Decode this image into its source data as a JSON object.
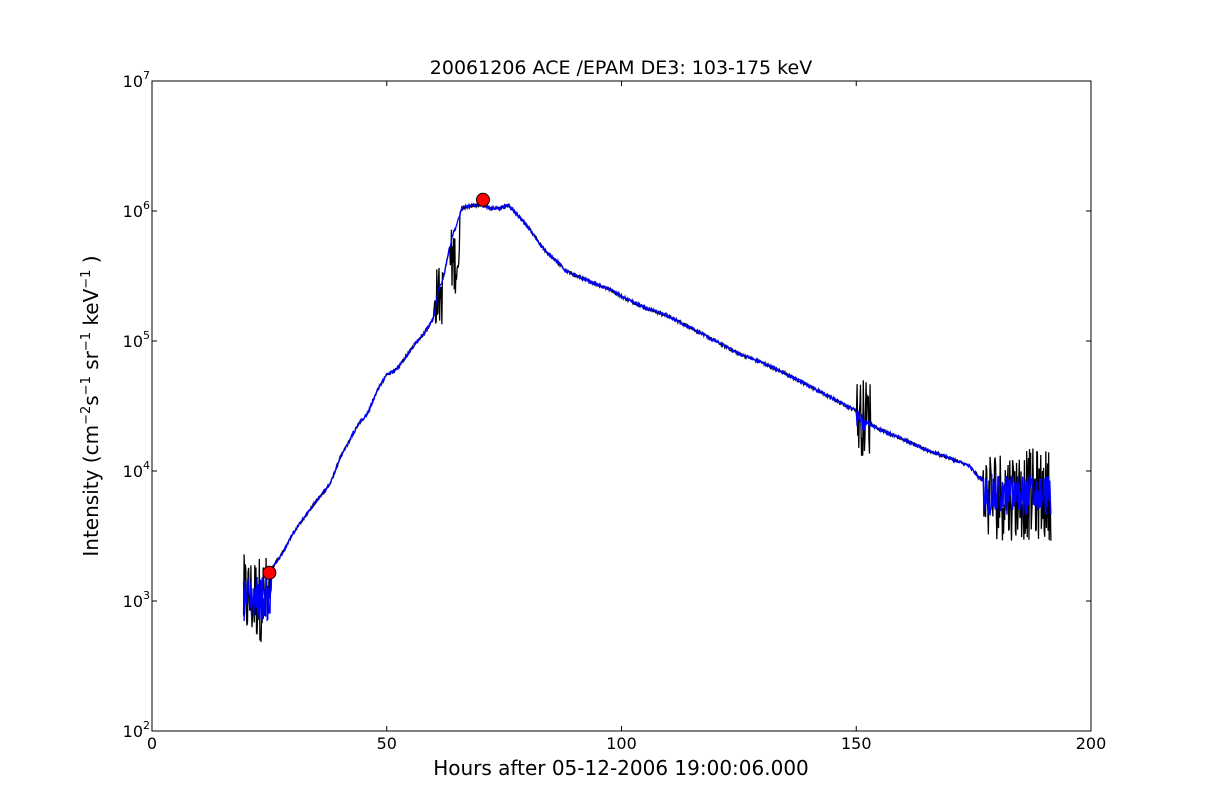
{
  "chart_data": {
    "type": "line",
    "title": "20061206 ACE /EPAM DE3: 103-175 keV",
    "xlabel": "Hours after 05-12-2006 19:00:06.000",
    "ylabel_parts": {
      "prefix": "Intensity (cm",
      "cm_exp": "−2",
      "s": "s",
      "s_exp": "−1",
      "sr": "sr",
      "sr_exp": "−1",
      "kev": "keV",
      "kev_exp": "−1",
      "suffix": ")"
    },
    "xlim": [
      0,
      200
    ],
    "ylim": [
      100,
      10000000
    ],
    "yscale": "log",
    "grid": false,
    "x_ticks": [
      {
        "value": 0,
        "label": "0"
      },
      {
        "value": 50,
        "label": "50"
      },
      {
        "value": 100,
        "label": "100"
      },
      {
        "value": 150,
        "label": "150"
      },
      {
        "value": 200,
        "label": "200"
      }
    ],
    "y_ticks": [
      {
        "value": 100,
        "base": "10",
        "exp": "2"
      },
      {
        "value": 1000,
        "base": "10",
        "exp": "3"
      },
      {
        "value": 10000,
        "base": "10",
        "exp": "4"
      },
      {
        "value": 100000,
        "base": "10",
        "exp": "5"
      },
      {
        "value": 1000000,
        "base": "10",
        "exp": "6"
      },
      {
        "value": 10000000,
        "base": "10",
        "exp": "7"
      }
    ],
    "series": [
      {
        "color": "#000000",
        "x": [
          19.5,
          20.5,
          22,
          24,
          25,
          26,
          28,
          30,
          33,
          36,
          38,
          40,
          42,
          44,
          46,
          48,
          50,
          52,
          54,
          56,
          58,
          60,
          61,
          62,
          63,
          64,
          65,
          66,
          68,
          70,
          72,
          74,
          76,
          78,
          80,
          82,
          84,
          86,
          88,
          90,
          92,
          95,
          98,
          100,
          105,
          110,
          115,
          120,
          125,
          130,
          135,
          140,
          145,
          150,
          151,
          152,
          155,
          160,
          165,
          170,
          174,
          176,
          178,
          180,
          182,
          184,
          186,
          188,
          190,
          191.5
        ],
        "y": [
          1000,
          1100,
          1050,
          1200,
          1600,
          1900,
          2400,
          3300,
          4700,
          6500,
          8000,
          12500,
          17000,
          23000,
          28000,
          42000,
          55000,
          60000,
          75000,
          95000,
          115000,
          150000,
          250000,
          300000,
          450000,
          650000,
          800000,
          1050000,
          1100000,
          1120000,
          1050000,
          1050000,
          1100000,
          920000,
          760000,
          600000,
          480000,
          420000,
          350000,
          320000,
          300000,
          270000,
          245000,
          220000,
          180000,
          155000,
          125000,
          100000,
          80000,
          68000,
          56000,
          45000,
          36000,
          29000,
          24000,
          24000,
          21000,
          17500,
          14500,
          12500,
          11000,
          9000,
          8000,
          7800,
          7200,
          7000,
          6600,
          6200,
          5800,
          5500
        ],
        "noise": [
          {
            "from": 19.5,
            "to": 25.5,
            "ymin": 480,
            "ymax": 2300
          },
          {
            "from": 60,
            "to": 62,
            "ymin": 130000,
            "ymax": 380000
          },
          {
            "from": 63.5,
            "to": 65.5,
            "ymin": 230000,
            "ymax": 750000
          },
          {
            "from": 150,
            "to": 153,
            "ymin": 13000,
            "ymax": 52000
          },
          {
            "from": 177,
            "to": 192,
            "ymin": 2900,
            "ymax": 15000
          }
        ]
      },
      {
        "color": "#0000ff",
        "x": [
          19.5,
          20.5,
          22,
          24,
          25,
          26,
          28,
          30,
          33,
          36,
          38,
          40,
          42,
          44,
          46,
          48,
          50,
          52,
          54,
          56,
          58,
          60,
          61,
          62,
          63,
          64,
          65,
          66,
          68,
          70,
          72,
          74,
          76,
          78,
          80,
          82,
          84,
          86,
          88,
          90,
          92,
          95,
          98,
          100,
          105,
          110,
          115,
          120,
          125,
          130,
          135,
          140,
          145,
          150,
          151,
          152,
          155,
          160,
          165,
          170,
          174,
          176,
          178,
          180,
          182,
          184,
          186,
          188,
          190,
          191.5
        ],
        "y": [
          1000,
          1100,
          1050,
          1200,
          1600,
          1900,
          2400,
          3300,
          4700,
          6500,
          8000,
          12500,
          17000,
          23000,
          28000,
          42000,
          55000,
          60000,
          75000,
          95000,
          115000,
          150000,
          250000,
          300000,
          450000,
          650000,
          800000,
          1050000,
          1100000,
          1120000,
          1050000,
          1050000,
          1100000,
          920000,
          760000,
          600000,
          480000,
          420000,
          350000,
          320000,
          300000,
          270000,
          245000,
          220000,
          180000,
          155000,
          125000,
          100000,
          80000,
          68000,
          56000,
          45000,
          36000,
          29000,
          24000,
          24000,
          21000,
          17500,
          14500,
          12500,
          11000,
          9000,
          8000,
          7800,
          7200,
          7000,
          6600,
          6200,
          5800,
          5500
        ],
        "noise": [
          {
            "from": 19.5,
            "to": 25.5,
            "ymin": 700,
            "ymax": 1600
          },
          {
            "from": 150,
            "to": 152,
            "ymin": 20000,
            "ymax": 30000
          },
          {
            "from": 177,
            "to": 192,
            "ymin": 4500,
            "ymax": 9500
          }
        ]
      }
    ],
    "markers": [
      {
        "x": 25,
        "y": 1650,
        "color": "#ff0000"
      },
      {
        "x": 70.5,
        "y": 1220000,
        "color": "#ff0000"
      }
    ]
  }
}
